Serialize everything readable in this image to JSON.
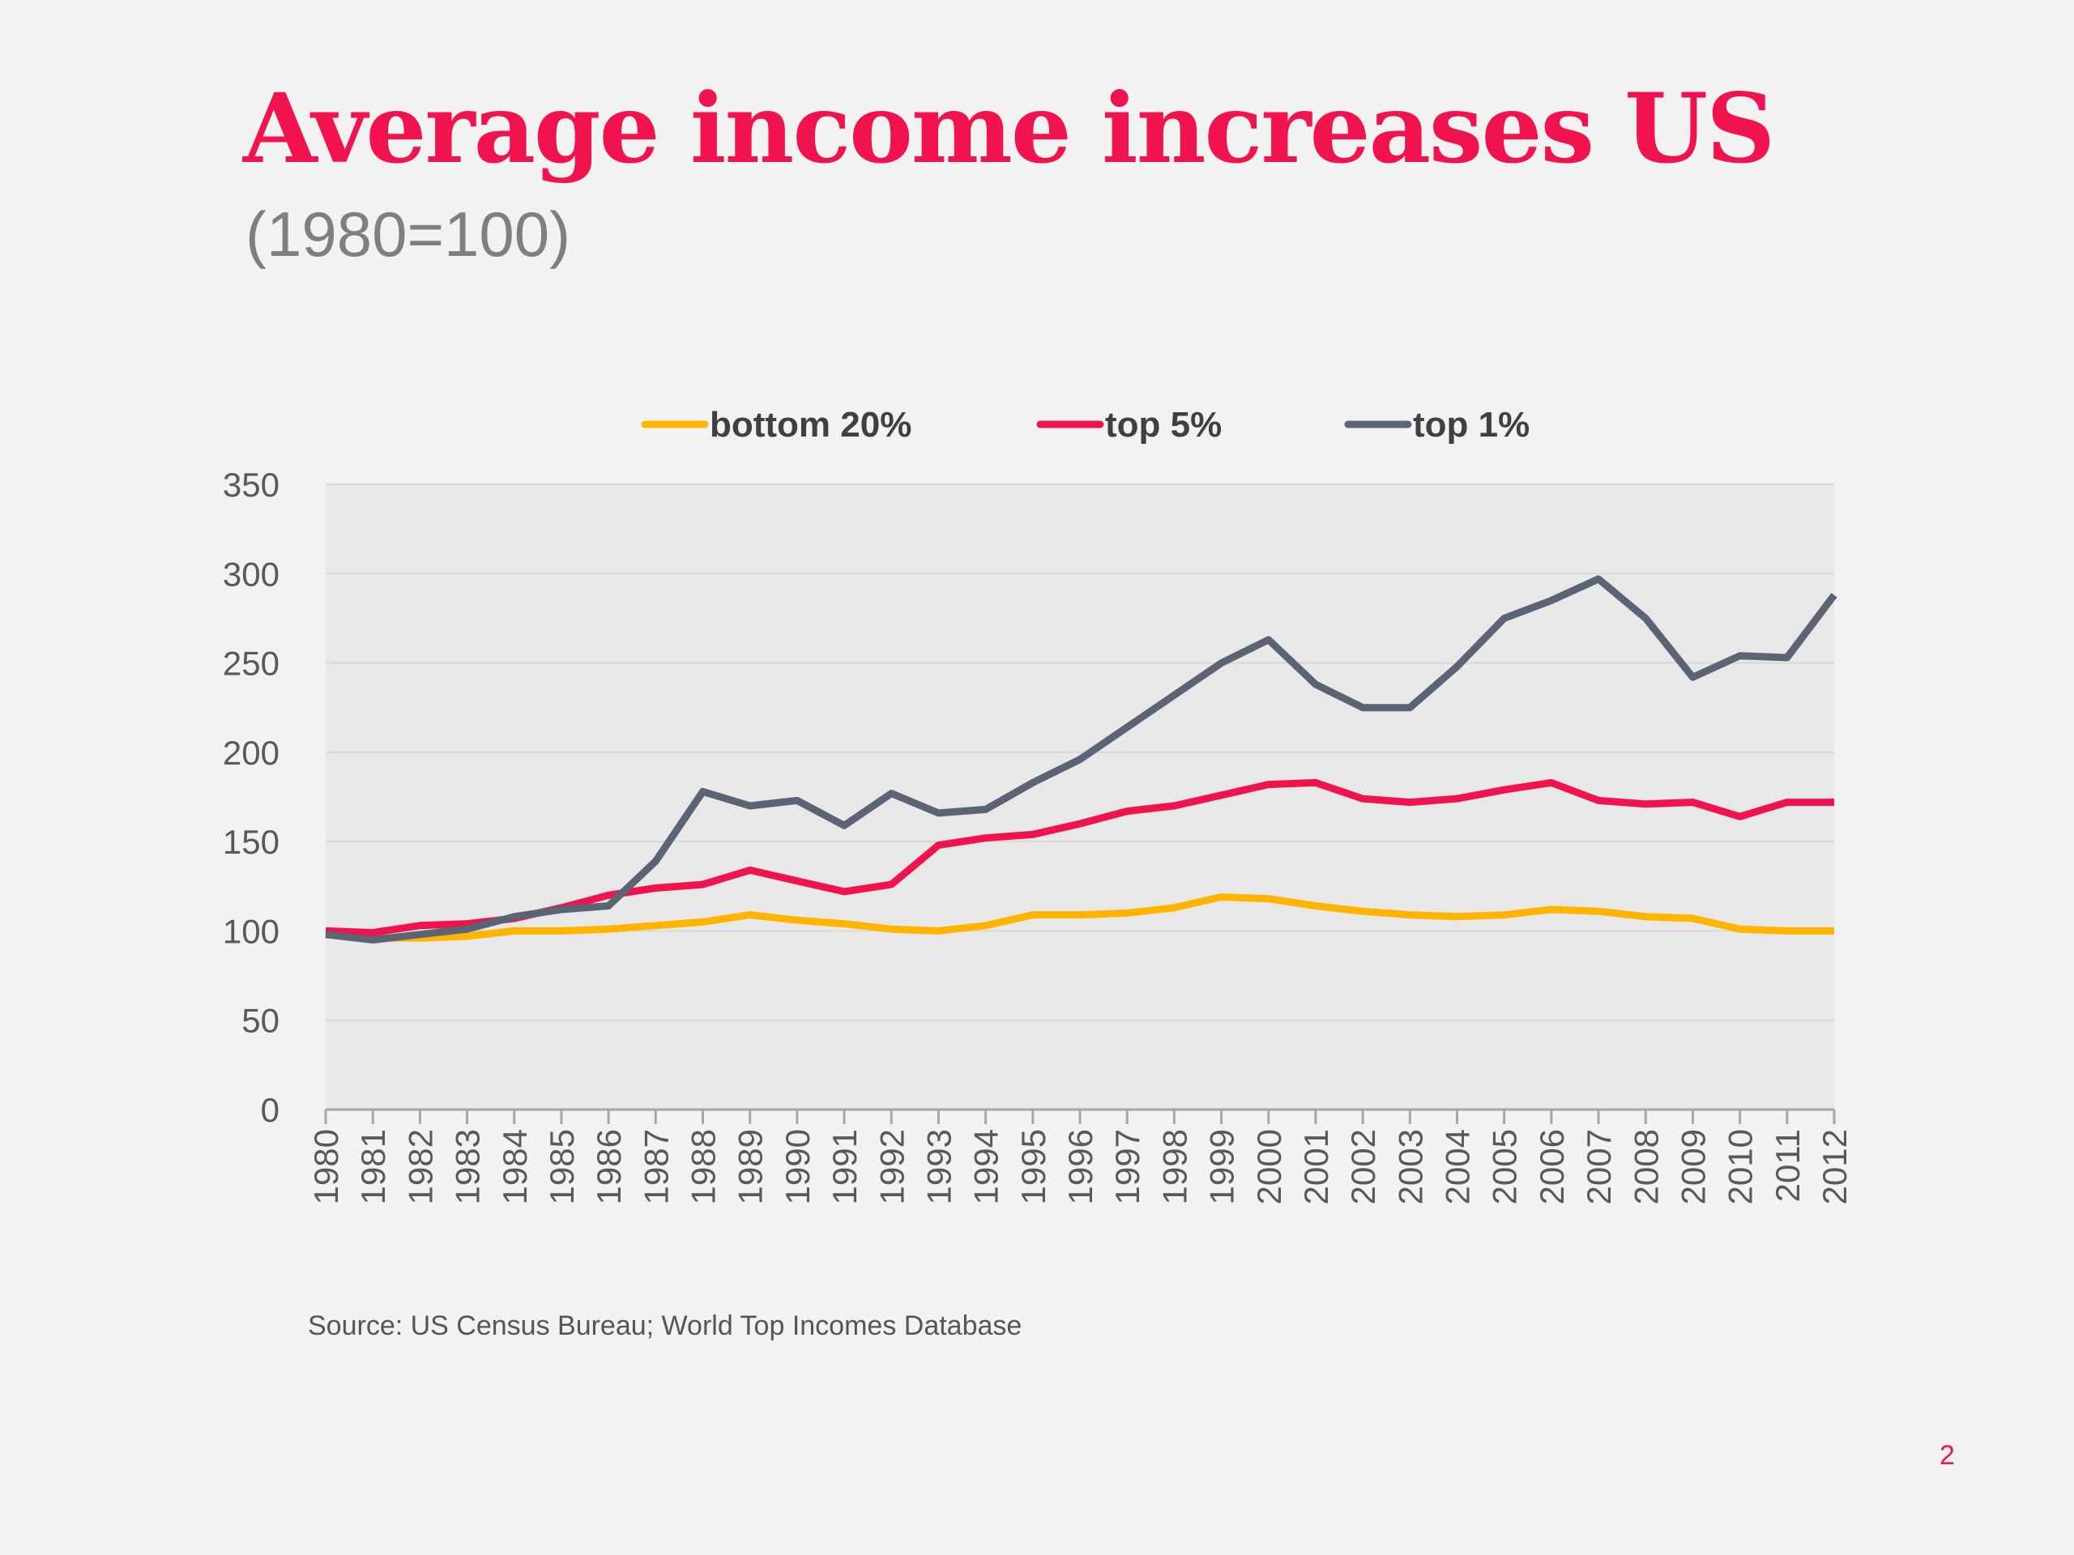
{
  "slide": {
    "title": "Average income increases US",
    "subtitle": "(1980=100)",
    "source": "Source: US Census Bureau; World Top Incomes Database",
    "page_number": "2",
    "accent_color": "#f0134d",
    "background": "#f2f2f2"
  },
  "chart_data": {
    "type": "line",
    "title": "",
    "xlabel": "",
    "ylabel": "",
    "x": [
      "1980",
      "1981",
      "1982",
      "1983",
      "1984",
      "1985",
      "1986",
      "1987",
      "1988",
      "1989",
      "1990",
      "1991",
      "1992",
      "1993",
      "1994",
      "1995",
      "1996",
      "1997",
      "1998",
      "1999",
      "2000",
      "2001",
      "2002",
      "2003",
      "2004",
      "2005",
      "2006",
      "2007",
      "2008",
      "2009",
      "2010",
      "2011",
      "2012"
    ],
    "ylim": [
      0,
      350
    ],
    "yticks": [
      0,
      50,
      100,
      150,
      200,
      250,
      300,
      350
    ],
    "grid": true,
    "legend_position": "top",
    "plot_background": "#e8e8e8",
    "series": [
      {
        "name": "bottom 20%",
        "color": "#ffb400",
        "values": [
          100,
          96,
          96,
          97,
          100,
          100,
          101,
          103,
          105,
          109,
          106,
          104,
          101,
          100,
          103,
          109,
          109,
          110,
          113,
          119,
          118,
          114,
          111,
          109,
          108,
          109,
          112,
          111,
          108,
          107,
          101,
          100,
          100
        ]
      },
      {
        "name": "top 5%",
        "color": "#f0134d",
        "values": [
          100,
          99,
          103,
          104,
          107,
          113,
          120,
          124,
          126,
          134,
          128,
          122,
          126,
          148,
          152,
          154,
          160,
          167,
          170,
          176,
          182,
          183,
          174,
          172,
          174,
          179,
          183,
          173,
          171,
          172,
          164,
          172,
          172
        ]
      },
      {
        "name": "top 1%",
        "color": "#5b6475",
        "values": [
          98,
          95,
          98,
          101,
          108,
          112,
          114,
          139,
          178,
          170,
          173,
          159,
          177,
          166,
          168,
          183,
          196,
          214,
          232,
          250,
          263,
          238,
          225,
          225,
          248,
          275,
          285,
          297,
          275,
          242,
          254,
          253,
          288
        ]
      }
    ]
  }
}
